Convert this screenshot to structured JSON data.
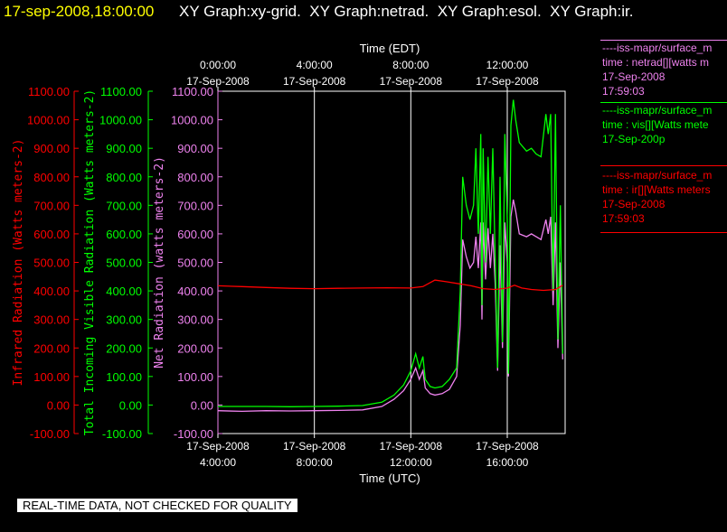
{
  "header": {
    "timestamp": "17-sep-2008,18:00:00",
    "graphs": [
      "XY Graph:xy-grid.",
      "XY Graph:netrad.",
      "XY Graph:esol.",
      "XY Graph:ir."
    ]
  },
  "colors": {
    "background": "#000000",
    "grid": "#ffffff",
    "infrared": "#ff0000",
    "visible": "#00ff00",
    "net": "#ee82ee",
    "timestamp": "#ffff00"
  },
  "chart_data": {
    "type": "line",
    "grid": true,
    "top_axis": {
      "label": "Time (EDT)",
      "ticks": [
        {
          "time": "0:00:00",
          "date": "17-Sep-2008"
        },
        {
          "time": "4:00:00",
          "date": "17-Sep-2008"
        },
        {
          "time": "8:00:00",
          "date": "17-Sep-2008"
        },
        {
          "time": "12:00:00",
          "date": "17-Sep-2008"
        }
      ]
    },
    "bottom_axis": {
      "label": "Time (UTC)",
      "ticks": [
        {
          "date": "17-Sep-2008",
          "time": "4:00:00",
          "hour_utc": 4
        },
        {
          "date": "17-Sep-2008",
          "time": "8:00:00",
          "hour_utc": 8
        },
        {
          "date": "17-Sep-2008",
          "time": "12:00:00",
          "hour_utc": 12
        },
        {
          "date": "17-Sep-2008",
          "time": "16:00:00",
          "hour_utc": 16
        }
      ],
      "xlim_utc_hours": [
        4,
        18.4
      ]
    },
    "y_axes": [
      {
        "id": "infrared",
        "label": "Infrared Radiation (Watts meters-2)",
        "color": "#ff0000",
        "ticks": [
          "1100.00",
          "1000.00",
          "900.00",
          "800.00",
          "700.00",
          "600.00",
          "500.00",
          "400.00",
          "300.00",
          "200.00",
          "100.00",
          "0.00",
          "-100.00"
        ]
      },
      {
        "id": "visible",
        "label": "Total Incoming Visible Radiation (Watts meters-2)",
        "color": "#00ff00",
        "ticks": [
          "1100.00",
          "1000.00",
          "900.00",
          "800.00",
          "700.00",
          "600.00",
          "500.00",
          "400.00",
          "300.00",
          "200.00",
          "100.00",
          "0.00",
          "-100.00"
        ]
      },
      {
        "id": "net",
        "label": "Net Radiation (watts meters-2)",
        "color": "#ee82ee",
        "ticks": [
          "1100.00",
          "1000.00",
          "900.00",
          "800.00",
          "700.00",
          "600.00",
          "500.00",
          "400.00",
          "300.00",
          "200.00",
          "100.00",
          "0.00",
          "-100.00"
        ]
      }
    ],
    "ylim": [
      -100,
      1100
    ],
    "series": [
      {
        "id": "net",
        "color": "#ee82ee",
        "points": [
          [
            4,
            -20
          ],
          [
            5,
            -22
          ],
          [
            6,
            -20
          ],
          [
            7,
            -21
          ],
          [
            8,
            -20
          ],
          [
            9,
            -19
          ],
          [
            10,
            -17
          ],
          [
            10.8,
            -5
          ],
          [
            11.3,
            20
          ],
          [
            11.7,
            50
          ],
          [
            12.0,
            90
          ],
          [
            12.2,
            130
          ],
          [
            12.35,
            90
          ],
          [
            12.5,
            120
          ],
          [
            12.6,
            60
          ],
          [
            12.8,
            40
          ],
          [
            13.0,
            35
          ],
          [
            13.3,
            40
          ],
          [
            13.6,
            55
          ],
          [
            13.9,
            100
          ],
          [
            14.05,
            280
          ],
          [
            14.15,
            580
          ],
          [
            14.3,
            520
          ],
          [
            14.45,
            480
          ],
          [
            14.6,
            500
          ],
          [
            14.7,
            590
          ],
          [
            14.8,
            480
          ],
          [
            14.9,
            640
          ],
          [
            14.95,
            300
          ],
          [
            15.0,
            640
          ],
          [
            15.1,
            440
          ],
          [
            15.2,
            620
          ],
          [
            15.3,
            480
          ],
          [
            15.4,
            600
          ],
          [
            15.5,
            420
          ],
          [
            15.6,
            120
          ],
          [
            15.7,
            560
          ],
          [
            15.8,
            200
          ],
          [
            15.9,
            640
          ],
          [
            16.0,
            500
          ],
          [
            16.05,
            100
          ],
          [
            16.15,
            660
          ],
          [
            16.25,
            720
          ],
          [
            16.35,
            680
          ],
          [
            16.5,
            600
          ],
          [
            16.8,
            590
          ],
          [
            17.0,
            600
          ],
          [
            17.2,
            590
          ],
          [
            17.4,
            580
          ],
          [
            17.6,
            650
          ],
          [
            17.7,
            600
          ],
          [
            17.8,
            660
          ],
          [
            17.9,
            350
          ],
          [
            18.0,
            640
          ],
          [
            18.1,
            200
          ],
          [
            18.2,
            500
          ],
          [
            18.3,
            160
          ]
        ]
      },
      {
        "id": "visible",
        "color": "#00ff00",
        "points": [
          [
            4,
            -5
          ],
          [
            5,
            -5
          ],
          [
            6,
            -5
          ],
          [
            7,
            -6
          ],
          [
            8,
            -5
          ],
          [
            9,
            -4
          ],
          [
            10,
            -2
          ],
          [
            10.8,
            10
          ],
          [
            11.3,
            35
          ],
          [
            11.7,
            70
          ],
          [
            12.0,
            120
          ],
          [
            12.2,
            180
          ],
          [
            12.35,
            130
          ],
          [
            12.5,
            170
          ],
          [
            12.6,
            90
          ],
          [
            12.8,
            65
          ],
          [
            13.0,
            60
          ],
          [
            13.3,
            65
          ],
          [
            13.6,
            90
          ],
          [
            13.9,
            130
          ],
          [
            14.05,
            400
          ],
          [
            14.15,
            800
          ],
          [
            14.3,
            700
          ],
          [
            14.45,
            650
          ],
          [
            14.6,
            700
          ],
          [
            14.7,
            900
          ],
          [
            14.8,
            600
          ],
          [
            14.9,
            950
          ],
          [
            14.95,
            350
          ],
          [
            15.0,
            900
          ],
          [
            15.1,
            500
          ],
          [
            15.2,
            870
          ],
          [
            15.3,
            600
          ],
          [
            15.4,
            900
          ],
          [
            15.5,
            500
          ],
          [
            15.6,
            130
          ],
          [
            15.7,
            800
          ],
          [
            15.8,
            220
          ],
          [
            15.9,
            950
          ],
          [
            16.0,
            650
          ],
          [
            16.05,
            110
          ],
          [
            16.15,
            980
          ],
          [
            16.25,
            1070
          ],
          [
            16.35,
            1000
          ],
          [
            16.5,
            920
          ],
          [
            16.8,
            890
          ],
          [
            17.0,
            900
          ],
          [
            17.2,
            880
          ],
          [
            17.4,
            870
          ],
          [
            17.6,
            1020
          ],
          [
            17.7,
            950
          ],
          [
            17.8,
            1020
          ],
          [
            17.9,
            400
          ],
          [
            18.0,
            1020
          ],
          [
            18.1,
            230
          ],
          [
            18.2,
            700
          ],
          [
            18.3,
            180
          ]
        ]
      },
      {
        "id": "infrared",
        "color": "#ff0000",
        "points": [
          [
            4,
            418
          ],
          [
            5,
            415
          ],
          [
            6,
            412
          ],
          [
            7,
            409
          ],
          [
            8,
            408
          ],
          [
            9,
            409
          ],
          [
            10,
            410
          ],
          [
            11,
            411
          ],
          [
            12,
            410
          ],
          [
            12.5,
            415
          ],
          [
            13.0,
            438
          ],
          [
            13.5,
            432
          ],
          [
            14.0,
            425
          ],
          [
            14.5,
            418
          ],
          [
            15.0,
            408
          ],
          [
            15.5,
            405
          ],
          [
            16.0,
            410
          ],
          [
            16.3,
            420
          ],
          [
            16.6,
            410
          ],
          [
            17.0,
            405
          ],
          [
            17.5,
            402
          ],
          [
            18.0,
            405
          ],
          [
            18.3,
            420
          ]
        ]
      }
    ]
  },
  "legend": [
    {
      "line1": "----iss-mapr/surface_m",
      "line2": "time : netrad[][watts m",
      "line3": "17-Sep-2008",
      "line4": "17:59:03",
      "color": "#ee82ee"
    },
    {
      "line1": "----iss-mapr/surface_m",
      "line2": "time : vis[][Watts mete",
      "line3": "17-Sep-200p",
      "line4": "",
      "color": "#00ff00"
    },
    {
      "line1": "----iss-mapr/surface_m",
      "line2": "time : ir[][Watts meters",
      "line3": "17-Sep-2008",
      "line4": "17:59:03",
      "color": "#ff0000"
    }
  ],
  "disclaimer": "REAL-TIME DATA, NOT CHECKED FOR QUALITY"
}
